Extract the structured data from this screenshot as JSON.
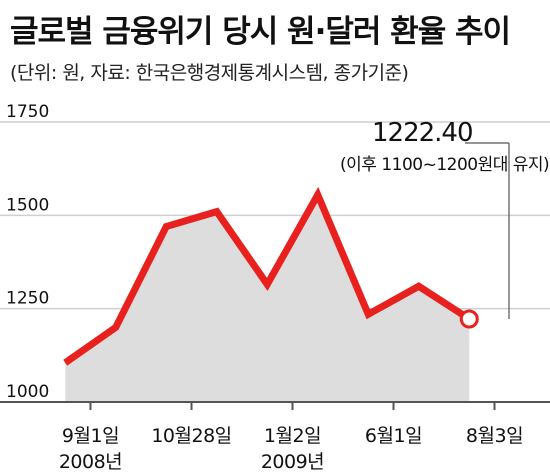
{
  "header": {
    "title": "글로벌 금융위기 당시 원·달러 환율 추이",
    "subtitle": "(단위: 원, 자료: 한국은행경제통계시스템, 종가기준)"
  },
  "colors": {
    "line": "#e8201e",
    "area": "#dddddd",
    "grid": "#cfcfcf",
    "axis": "#555555",
    "marker_fill": "#ffffff"
  },
  "chart_data": {
    "type": "area",
    "title": "글로벌 금융위기 당시 원·달러 환율 추이",
    "subtitle": "(단위: 원, 자료: 한국은행경제통계시스템, 종가기준)",
    "xlabel": "",
    "ylabel": "",
    "ylim": [
      1000,
      1750
    ],
    "yticks": [
      1000,
      1250,
      1500,
      1750
    ],
    "grid": true,
    "x_range": [
      0,
      10
    ],
    "x_ticks": [
      {
        "x": 1.0,
        "label": "9월1일",
        "sub": "2008년"
      },
      {
        "x": 3.0,
        "label": "10월28일",
        "sub": ""
      },
      {
        "x": 5.0,
        "label": "1월2일",
        "sub": "2009년"
      },
      {
        "x": 7.0,
        "label": "6월1일",
        "sub": ""
      },
      {
        "x": 9.0,
        "label": "8월3일",
        "sub": ""
      }
    ],
    "series": [
      {
        "points": [
          {
            "x": 0.5,
            "y": 1105
          },
          {
            "x": 1.5,
            "y": 1200
          },
          {
            "x": 2.5,
            "y": 1470
          },
          {
            "x": 3.5,
            "y": 1510
          },
          {
            "x": 4.5,
            "y": 1315
          },
          {
            "x": 5.5,
            "y": 1555
          },
          {
            "x": 6.5,
            "y": 1235
          },
          {
            "x": 7.5,
            "y": 1310
          },
          {
            "x": 8.5,
            "y": 1222.4
          }
        ]
      }
    ],
    "annotation": {
      "value_label": "1222.40",
      "note": "(이후 1100~1200원대 유지)"
    }
  }
}
